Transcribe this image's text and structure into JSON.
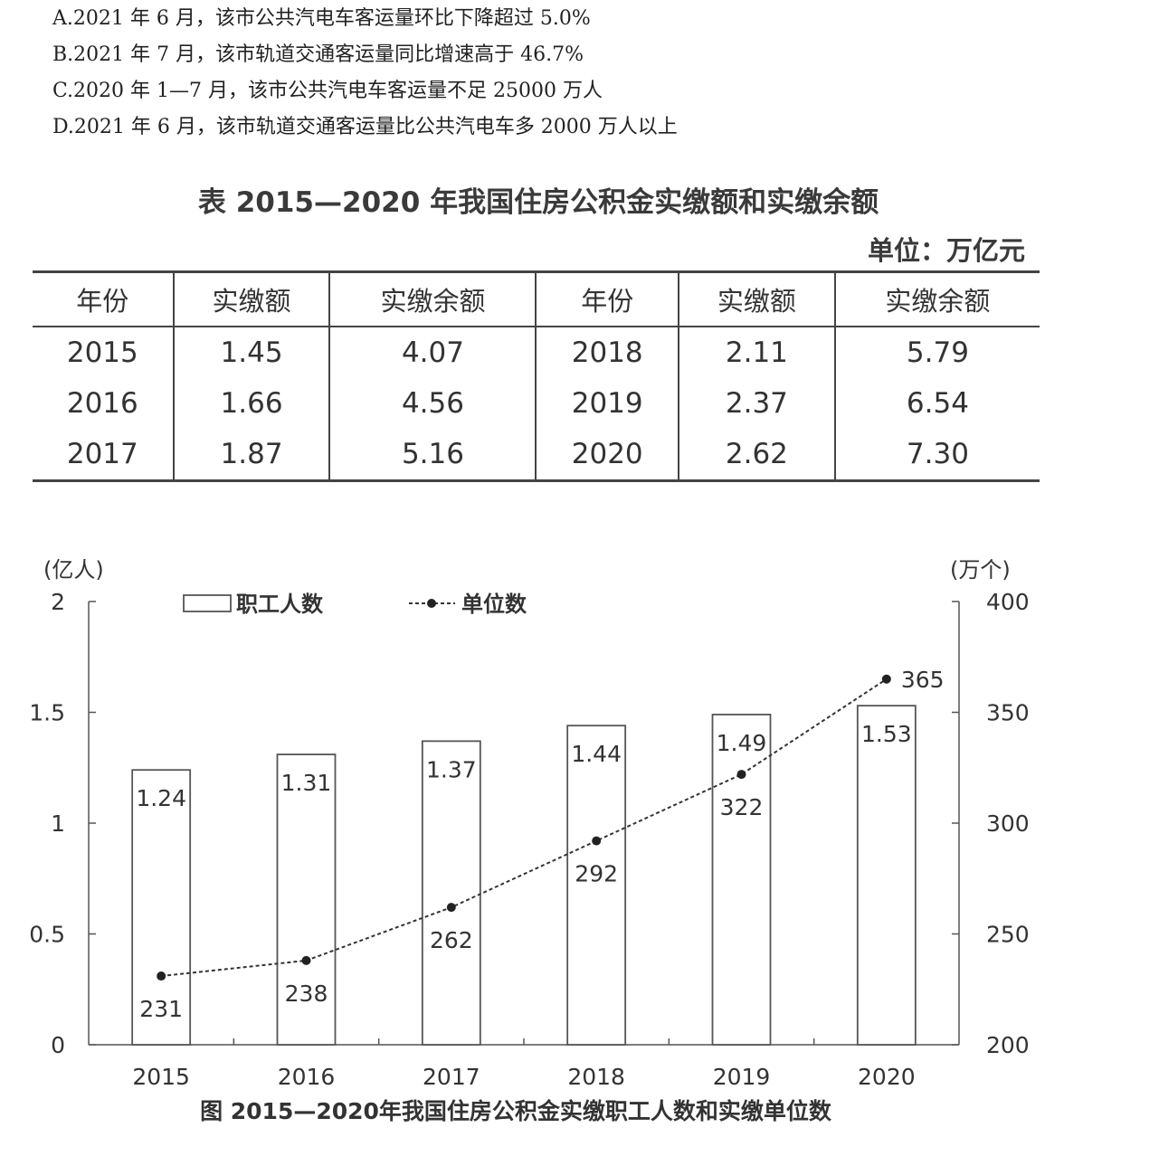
{
  "options": [
    "A.2021 年 6 月，该市公共汽电车客运量环比下降超过 5.0%",
    "B.2021 年 7 月，该市轨道交通客运量同比增速高于 46.7%",
    "C.2020 年 1—7 月，该市公共汽电车客运量不足 25000 万人",
    "D.2021 年 6 月，该市轨道交通客运量比公共汽电车多 2000 万人以上"
  ],
  "table": {
    "title": "表 2015—2020 年我国住房公积金实缴额和实缴余额",
    "unit": "单位：万亿元",
    "headers": [
      "年份",
      "实缴额",
      "实缴余额",
      "年份",
      "实缴额",
      "实缴余额"
    ],
    "rows": [
      [
        "2015",
        "1.45",
        "4.07",
        "2018",
        "2.11",
        "5.79"
      ],
      [
        "2016",
        "1.66",
        "4.56",
        "2019",
        "2.37",
        "6.54"
      ],
      [
        "2017",
        "1.87",
        "5.16",
        "2020",
        "2.62",
        "7.30"
      ]
    ]
  },
  "chart_data": {
    "type": "bar",
    "title": "图 2015—2020年我国住房公积金实缴职工人数和实缴单位数",
    "categories": [
      "2015",
      "2016",
      "2017",
      "2018",
      "2019",
      "2020"
    ],
    "left_axis": {
      "unit": "(亿人)",
      "ylim": [
        0,
        2
      ],
      "ticks": [
        "0",
        "0.5",
        "1",
        "1.5",
        "2"
      ]
    },
    "right_axis": {
      "unit": "(万个)",
      "ylim": [
        200,
        400
      ],
      "ticks": [
        "200",
        "250",
        "300",
        "350",
        "400"
      ]
    },
    "series": [
      {
        "name": "职工人数",
        "type": "bar",
        "axis": "left",
        "values": [
          1.24,
          1.31,
          1.37,
          1.44,
          1.49,
          1.53
        ],
        "labels": [
          "1.24",
          "1.31",
          "1.37",
          "1.44",
          "1.49",
          "1.53"
        ]
      },
      {
        "name": "单位数",
        "type": "line",
        "style": "dashed",
        "axis": "right",
        "values": [
          231,
          238,
          262,
          292,
          322,
          365
        ],
        "labels": [
          "231",
          "238",
          "262",
          "292",
          "322",
          "365"
        ]
      }
    ],
    "legend_position": "top-left",
    "grid": false
  }
}
